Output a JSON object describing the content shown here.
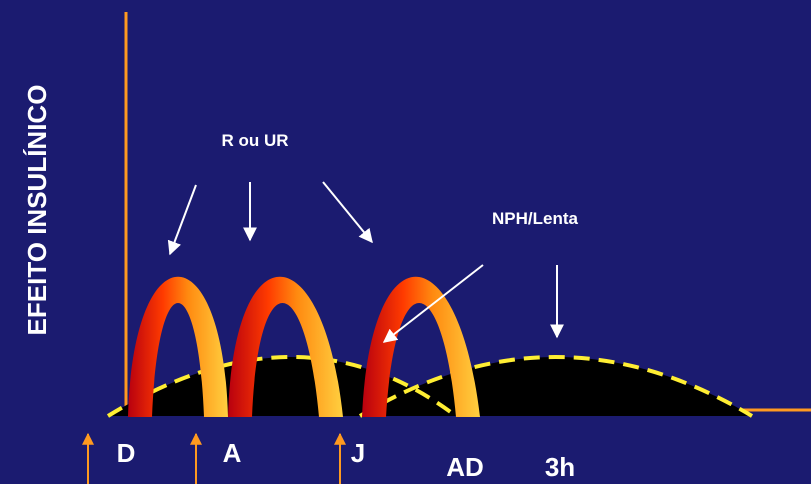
{
  "y_axis_label": "EFEITO INSULÍNICO",
  "annotations": [
    "R ou UR",
    "NPH/Lenta"
  ],
  "time_labels": [
    "D",
    "A",
    "J",
    "AD",
    "3h"
  ]
}
